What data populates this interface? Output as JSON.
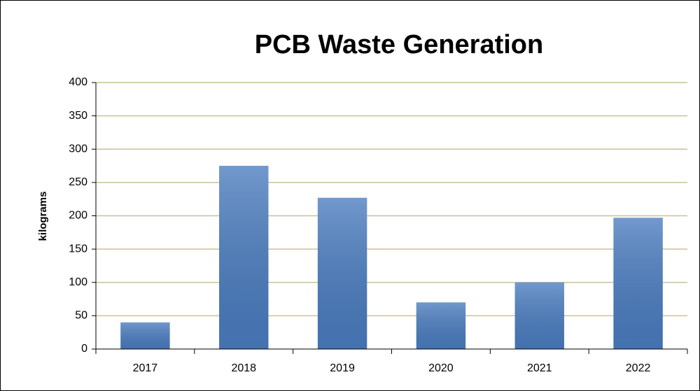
{
  "chart_data": {
    "type": "bar",
    "title": "PCB Waste Generation",
    "y_label": "kilograms",
    "categories": [
      "2017",
      "2018",
      "2019",
      "2020",
      "2021",
      "2022"
    ],
    "values": [
      40,
      275,
      227,
      70,
      100,
      197
    ],
    "color": "#4a7cbf",
    "ylim": [
      0,
      400
    ],
    "yticks": [
      0,
      50,
      100,
      150,
      200,
      250,
      300,
      350,
      400
    ],
    "grid": true
  }
}
